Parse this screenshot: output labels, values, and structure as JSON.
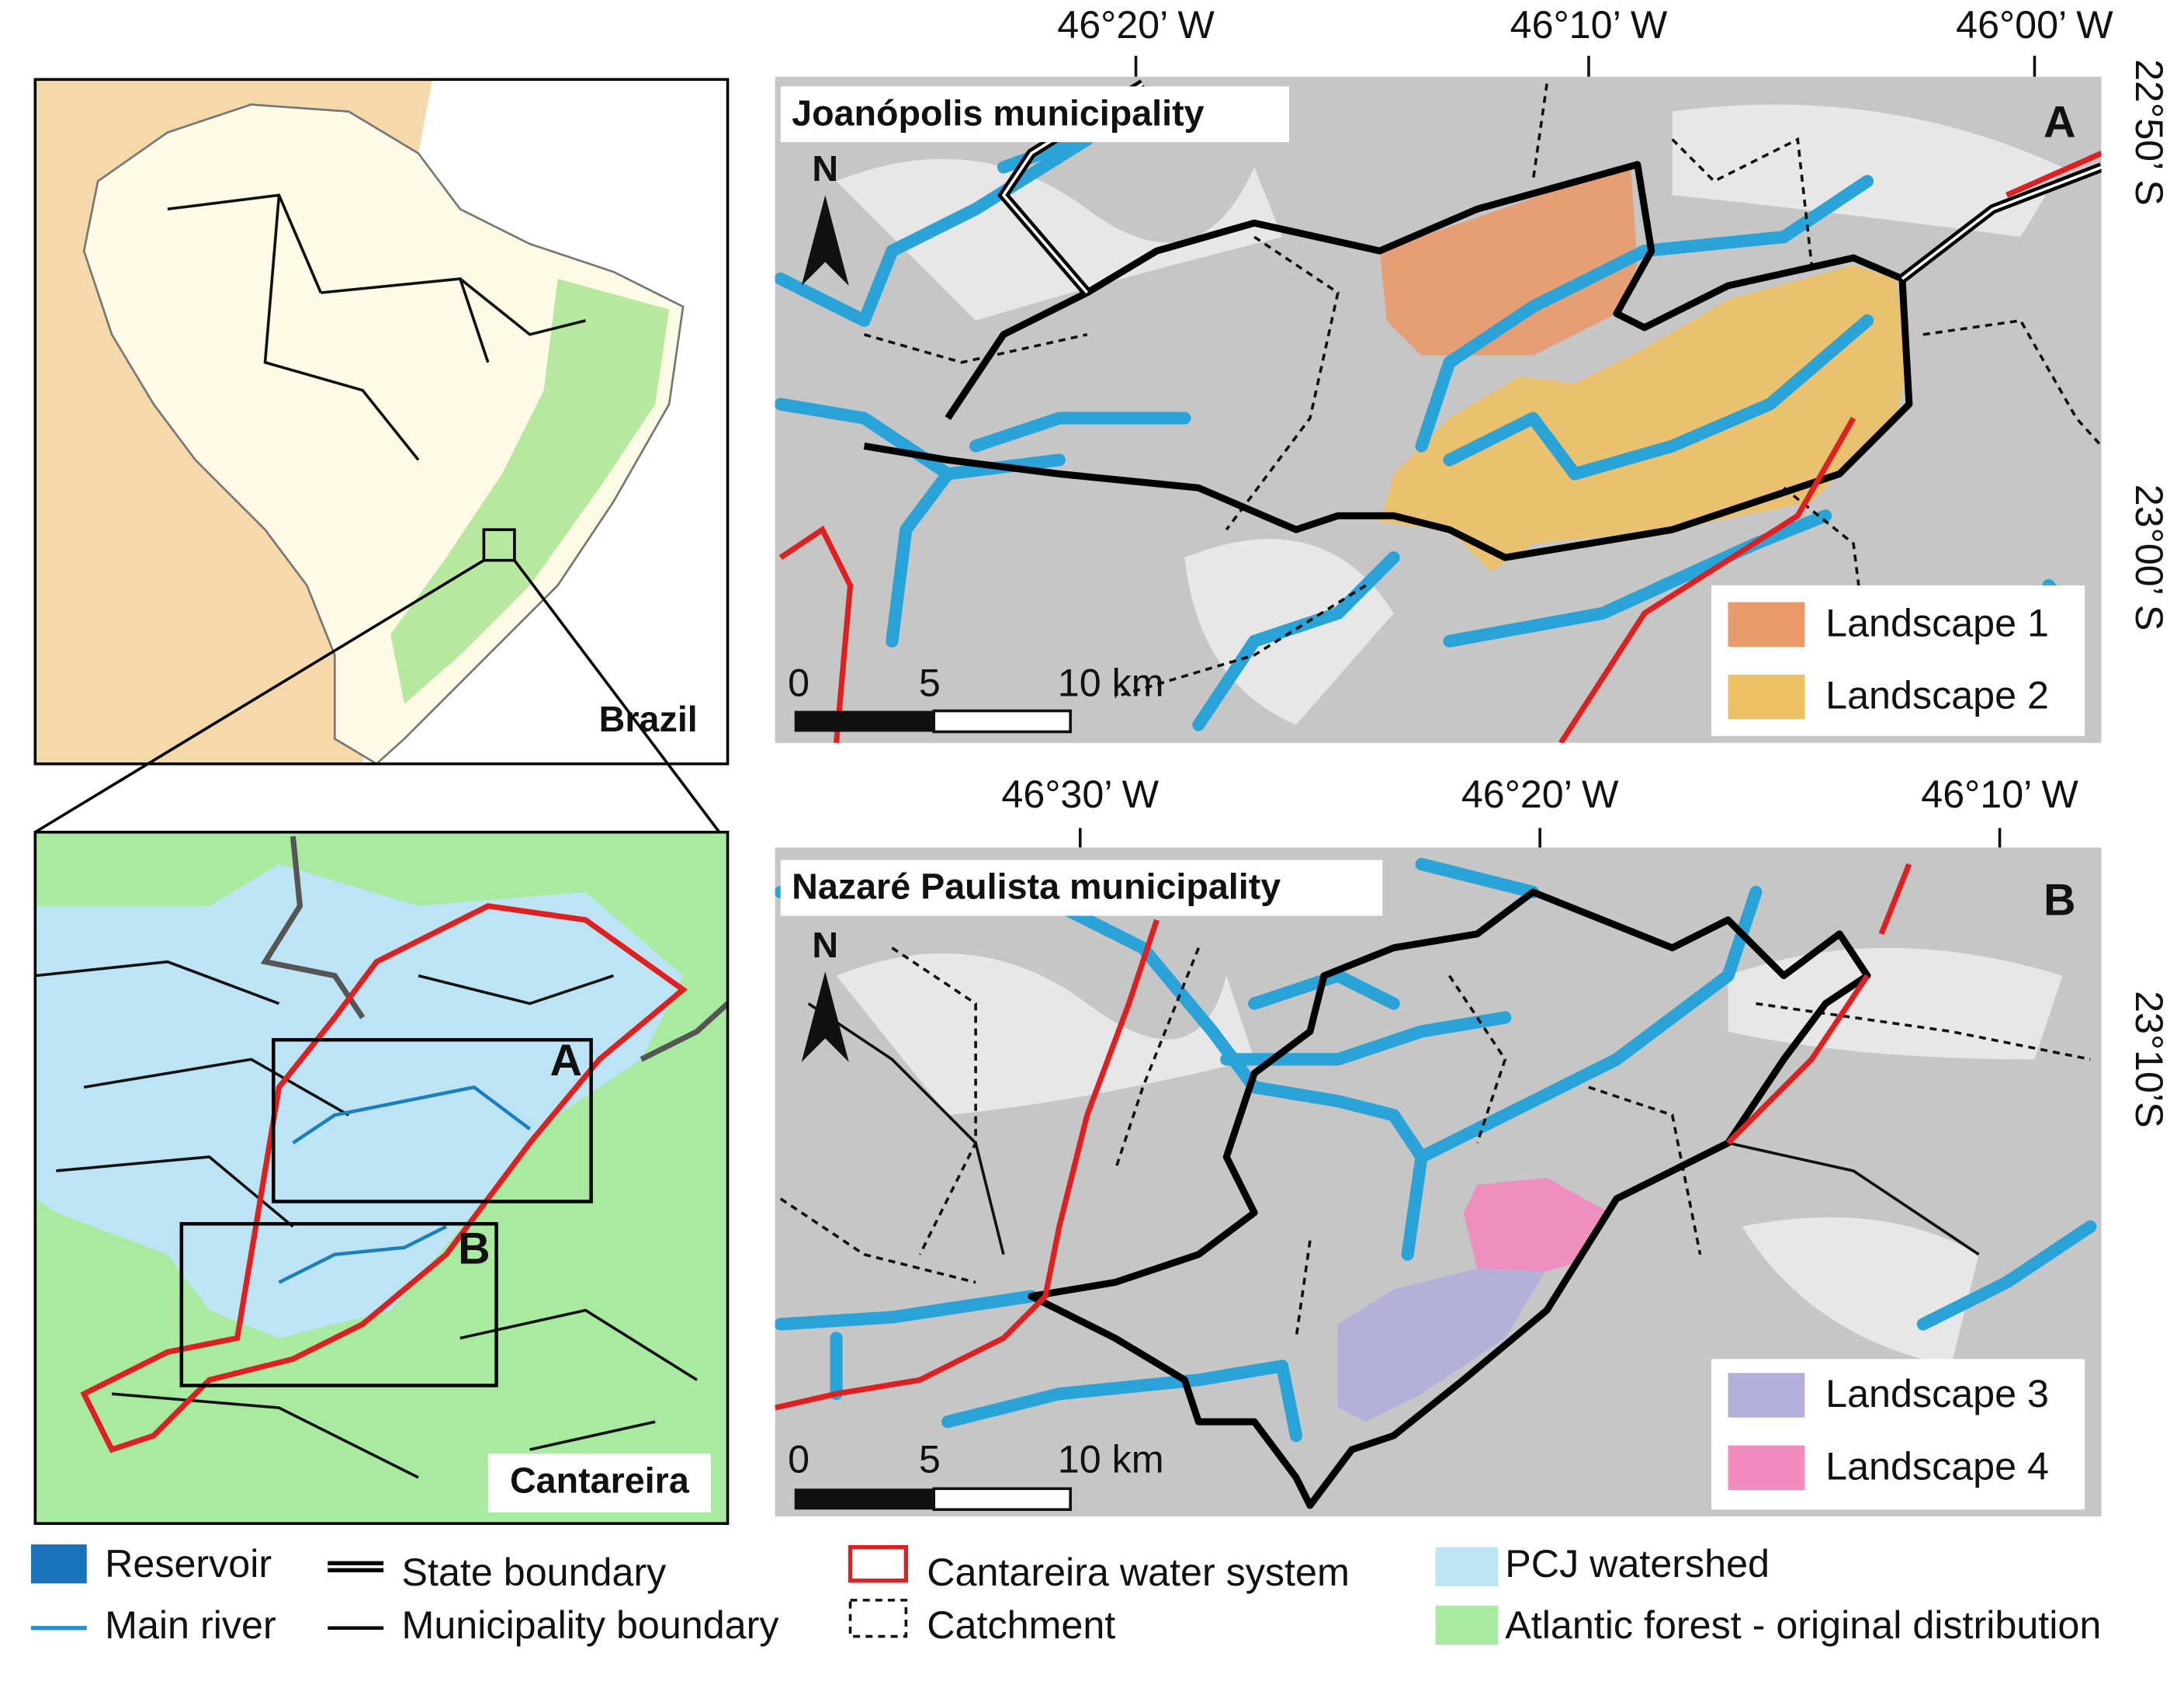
{
  "overview": {
    "label": "Brazil"
  },
  "inset": {
    "label": "Cantareira",
    "box_labels": [
      "A",
      "B"
    ]
  },
  "panel_a": {
    "title": "Joanópolis municipality",
    "letter": "A",
    "north": "N",
    "lon_labels": [
      "46°20’ W",
      "46°10’ W",
      "46°00’ W"
    ],
    "lat_labels": [
      "22°50’ S",
      "23°00’ S"
    ],
    "scale_labels": [
      "0",
      "5",
      "10 km"
    ],
    "legend": [
      "Landscape 1",
      "Landscape 2"
    ]
  },
  "panel_b": {
    "title": "Nazaré Paulista municipality",
    "letter": "B",
    "north": "N",
    "lon_labels": [
      "46°30’ W",
      "46°20’ W",
      "46°10’ W"
    ],
    "lat_labels": [
      "23°10’S"
    ],
    "scale_labels": [
      "0",
      "5",
      "10 km"
    ],
    "legend": [
      "Landscape 3",
      "Landscape 4"
    ]
  },
  "legend": [
    "Reservoir",
    "Main river",
    "State boundary",
    "Municipality boundary",
    "Cantareira water system",
    "Catchment",
    "PCJ watershed",
    "Atlantic forest - original distribution"
  ]
}
